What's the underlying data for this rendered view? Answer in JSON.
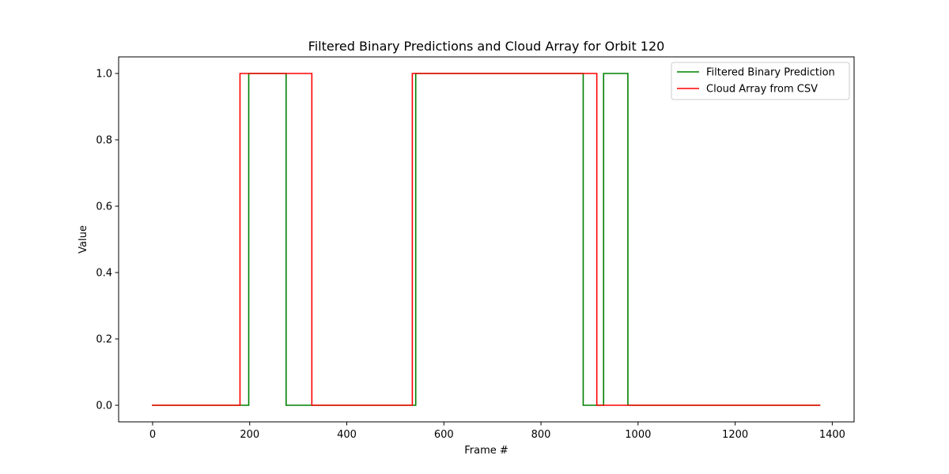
{
  "chart_data": {
    "type": "line",
    "title": "Filtered Binary Predictions and Cloud Array for Orbit 120",
    "xlabel": "Frame #",
    "ylabel": "Value",
    "xlim": [
      -70,
      1445
    ],
    "ylim": [
      -0.05,
      1.05
    ],
    "xticks": [
      0,
      200,
      400,
      600,
      800,
      1000,
      1200,
      1400
    ],
    "yticks": [
      0.0,
      0.2,
      0.4,
      0.6,
      0.8,
      1.0
    ],
    "xtick_labels": [
      "0",
      "200",
      "400",
      "600",
      "800",
      "1000",
      "1200",
      "1400"
    ],
    "ytick_labels": [
      "0.0",
      "0.2",
      "0.4",
      "0.6",
      "0.8",
      "1.0"
    ],
    "grid": false,
    "legend_position": "top-right",
    "step": true,
    "series": [
      {
        "name": "Filtered Binary Prediction",
        "color": "#008000",
        "points": [
          [
            0,
            0
          ],
          [
            198,
            0
          ],
          [
            198,
            1
          ],
          [
            275,
            1
          ],
          [
            275,
            0
          ],
          [
            542,
            0
          ],
          [
            542,
            1
          ],
          [
            887,
            1
          ],
          [
            887,
            0
          ],
          [
            929,
            0
          ],
          [
            929,
            1
          ],
          [
            979,
            1
          ],
          [
            979,
            0
          ],
          [
            1374,
            0
          ]
        ]
      },
      {
        "name": "Cloud Array from CSV",
        "color": "#ff0000",
        "points": [
          [
            0,
            0
          ],
          [
            180,
            0
          ],
          [
            180,
            1
          ],
          [
            328,
            1
          ],
          [
            328,
            0
          ],
          [
            535,
            0
          ],
          [
            535,
            1
          ],
          [
            915,
            1
          ],
          [
            915,
            0
          ],
          [
            1374,
            0
          ]
        ]
      }
    ]
  }
}
